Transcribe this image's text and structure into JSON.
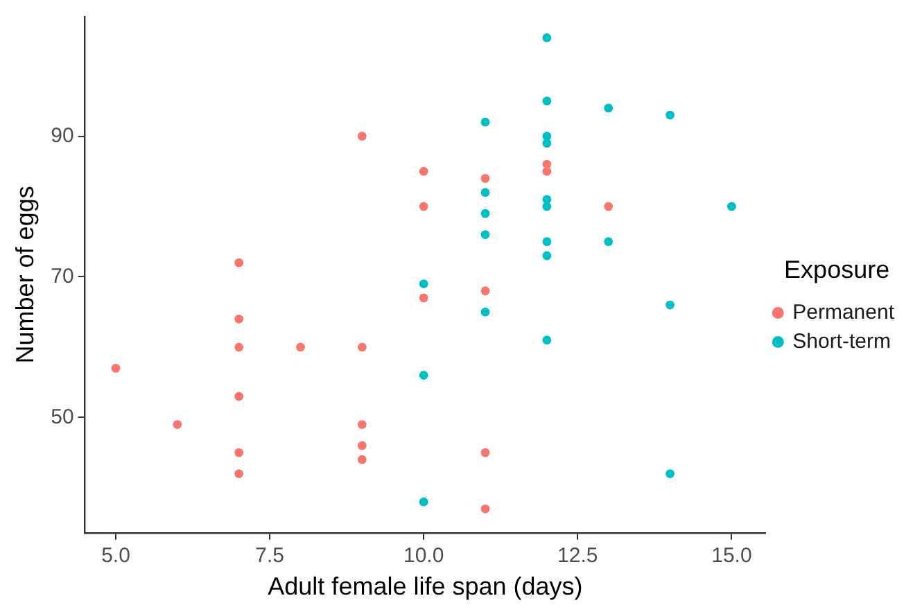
{
  "chart_data": {
    "type": "scatter",
    "xlabel": "Adult female life span (days)",
    "ylabel": "Number of eggs",
    "legend_title": "Exposure",
    "legend": "right",
    "grid": false,
    "marker": "circle",
    "xlim": [
      4.5,
      15.55
    ],
    "xticks": [
      {
        "value": 5,
        "label": "5.0"
      },
      {
        "value": 7.5,
        "label": "7.5"
      },
      {
        "value": 10,
        "label": "10.0"
      },
      {
        "value": 12.5,
        "label": "12.5"
      },
      {
        "value": 15,
        "label": "15.0"
      }
    ],
    "ylim": [
      33.6,
      107
    ],
    "yticks": [
      50,
      70,
      90
    ],
    "series": [
      {
        "name": "Permanent",
        "color": "#f8766d",
        "x": [
          5,
          6,
          7,
          7,
          7,
          7,
          7,
          7,
          8,
          9,
          9,
          9,
          9,
          9,
          10,
          10,
          10,
          11,
          11,
          11,
          11,
          12,
          12,
          13
        ],
        "values": [
          57,
          49,
          72,
          64,
          60,
          53,
          45,
          42,
          60,
          90,
          60,
          49,
          46,
          44,
          85,
          80,
          67,
          84,
          68,
          45,
          37,
          86,
          85,
          80
        ]
      },
      {
        "name": "Short-term",
        "color": "#00bfc4",
        "x": [
          10,
          10,
          10,
          11,
          11,
          11,
          11,
          11,
          12,
          12,
          12,
          12,
          12,
          12,
          12,
          12,
          12,
          13,
          13,
          14,
          14,
          14,
          15
        ],
        "values": [
          69,
          56,
          38,
          92,
          82,
          79,
          76,
          65,
          104,
          95,
          90,
          89,
          81,
          80,
          75,
          73,
          61,
          94,
          75,
          93,
          66,
          42,
          80
        ]
      }
    ]
  }
}
